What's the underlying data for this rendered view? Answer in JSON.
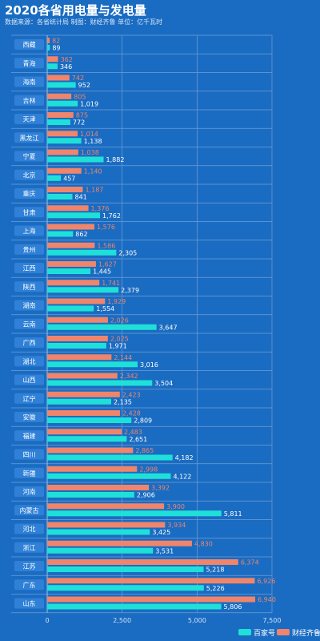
{
  "header": {
    "title": "2020各省用电量与发电量",
    "subtitle": "数据来源：各省统计局 制图：财经齐鲁 单位：亿千瓦时"
  },
  "legend": {
    "items": [
      {
        "label": "百家号",
        "color": "#1fe0d8"
      },
      {
        "label": "财经齐鲁",
        "color": "#f0856b"
      }
    ]
  },
  "chart_data": {
    "type": "bar",
    "orientation": "horizontal",
    "categories": [
      "西藏",
      "青海",
      "海南",
      "吉林",
      "天津",
      "黑龙江",
      "宁夏",
      "北京",
      "重庆",
      "甘肃",
      "上海",
      "贵州",
      "江西",
      "陕西",
      "湖南",
      "云南",
      "广西",
      "湖北",
      "山西",
      "辽宁",
      "安徽",
      "福建",
      "四川",
      "新疆",
      "河南",
      "内蒙古",
      "河北",
      "浙江",
      "江苏",
      "广东",
      "山东"
    ],
    "series": [
      {
        "name": "财经齐鲁",
        "color": "#f0856b",
        "values": [
          82,
          362,
          742,
          805,
          875,
          1014,
          1038,
          1140,
          1187,
          1376,
          1576,
          1586,
          1627,
          1741,
          1929,
          2026,
          2025,
          2144,
          2342,
          2423,
          2428,
          2483,
          2865,
          2998,
          3392,
          3900,
          3934,
          4830,
          6374,
          6926,
          6940
        ]
      },
      {
        "name": "百家号",
        "color": "#1fe0d8",
        "values": [
          89,
          346,
          952,
          1019,
          772,
          1138,
          1882,
          457,
          841,
          1762,
          862,
          2305,
          1445,
          2379,
          1554,
          3647,
          1971,
          3016,
          3504,
          2135,
          2809,
          2651,
          4182,
          4122,
          2906,
          5811,
          3425,
          3531,
          5218,
          5226,
          5806
        ]
      }
    ],
    "x_ticks": [
      "0",
      "2,500",
      "5,000",
      "7,500"
    ],
    "xlim": [
      0,
      7500
    ],
    "grid": true,
    "legend_position": "bottom-right"
  }
}
